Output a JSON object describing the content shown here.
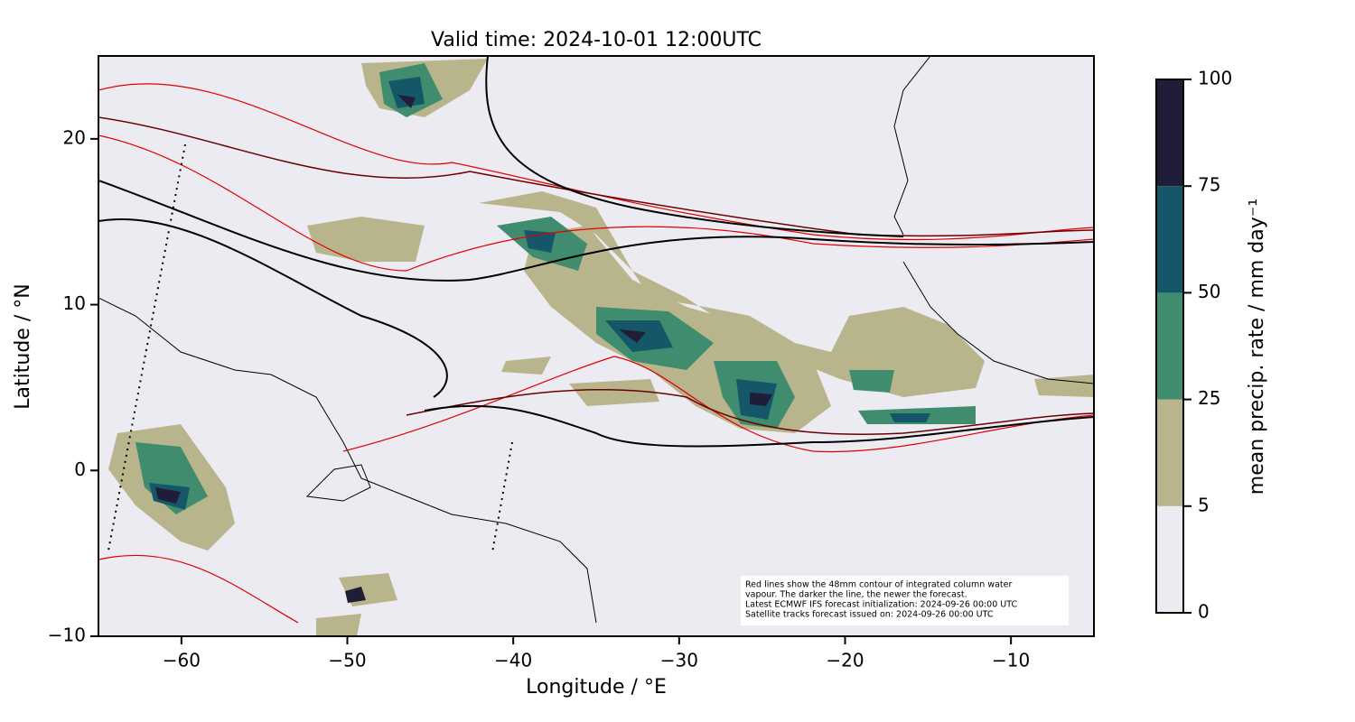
{
  "chart_data": {
    "type": "map",
    "title": "Valid time: 2024-10-01 12:00UTC",
    "xlabel": "Longitude / °E",
    "ylabel": "Latitude / °N",
    "xlim": [
      -65,
      -5
    ],
    "ylim": [
      -10,
      25
    ],
    "xticks": [
      {
        "value": -60,
        "label": "−60"
      },
      {
        "value": -50,
        "label": "−50"
      },
      {
        "value": -40,
        "label": "−40"
      },
      {
        "value": -30,
        "label": "−30"
      },
      {
        "value": -20,
        "label": "−20"
      },
      {
        "value": -10,
        "label": "−10"
      }
    ],
    "yticks": [
      {
        "value": -10,
        "label": "−10"
      },
      0,
      10,
      20
    ],
    "colorbar": {
      "label": "mean precip. rate / mm day⁻¹",
      "levels": [
        0,
        5,
        25,
        50,
        75,
        100
      ],
      "colors": [
        "#ecebf2",
        "#b8b58c",
        "#3f8c6e",
        "#155768",
        "#201d39"
      ]
    },
    "annotation": [
      "Red lines show the 48mm contour of integrated column water",
      "vapour. The darker the line, the newer the forecast.",
      "Latest ECMWF IFS forecast initialization: 2024-09-26 00:00 UTC",
      "Satellite tracks forecast issued on: 2024-09-26 00:00 UTC"
    ]
  }
}
